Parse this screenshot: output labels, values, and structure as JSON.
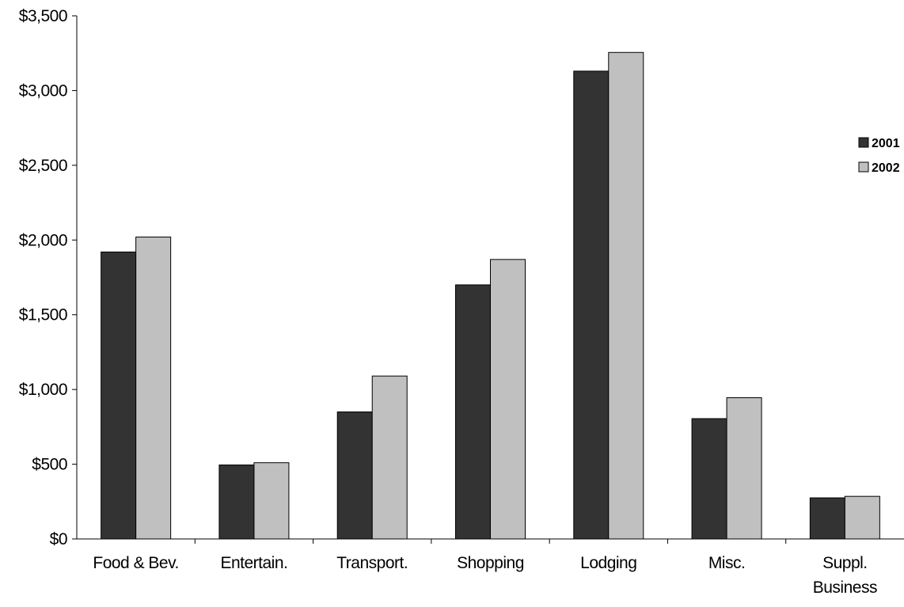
{
  "chart_data": {
    "type": "bar",
    "categories": [
      [
        "Food & Bev."
      ],
      [
        "Entertain."
      ],
      [
        "Transport."
      ],
      [
        "Shopping"
      ],
      [
        "Lodging"
      ],
      [
        "Misc."
      ],
      [
        "Suppl.",
        "Business"
      ]
    ],
    "series": [
      {
        "name": "2001",
        "color": "#333333",
        "values": [
          1920,
          495,
          850,
          1700,
          3130,
          805,
          275
        ]
      },
      {
        "name": "2002",
        "color": "#c0c0c0",
        "values": [
          2020,
          510,
          1090,
          1870,
          3255,
          945,
          285
        ]
      }
    ],
    "y_ticks": [
      "$0",
      "$500",
      "$1,000",
      "$1,500",
      "$2,000",
      "$2,500",
      "$3,000",
      "$3,500"
    ],
    "ylim": [
      0,
      3500
    ],
    "legend_position": "right",
    "grid": false
  }
}
